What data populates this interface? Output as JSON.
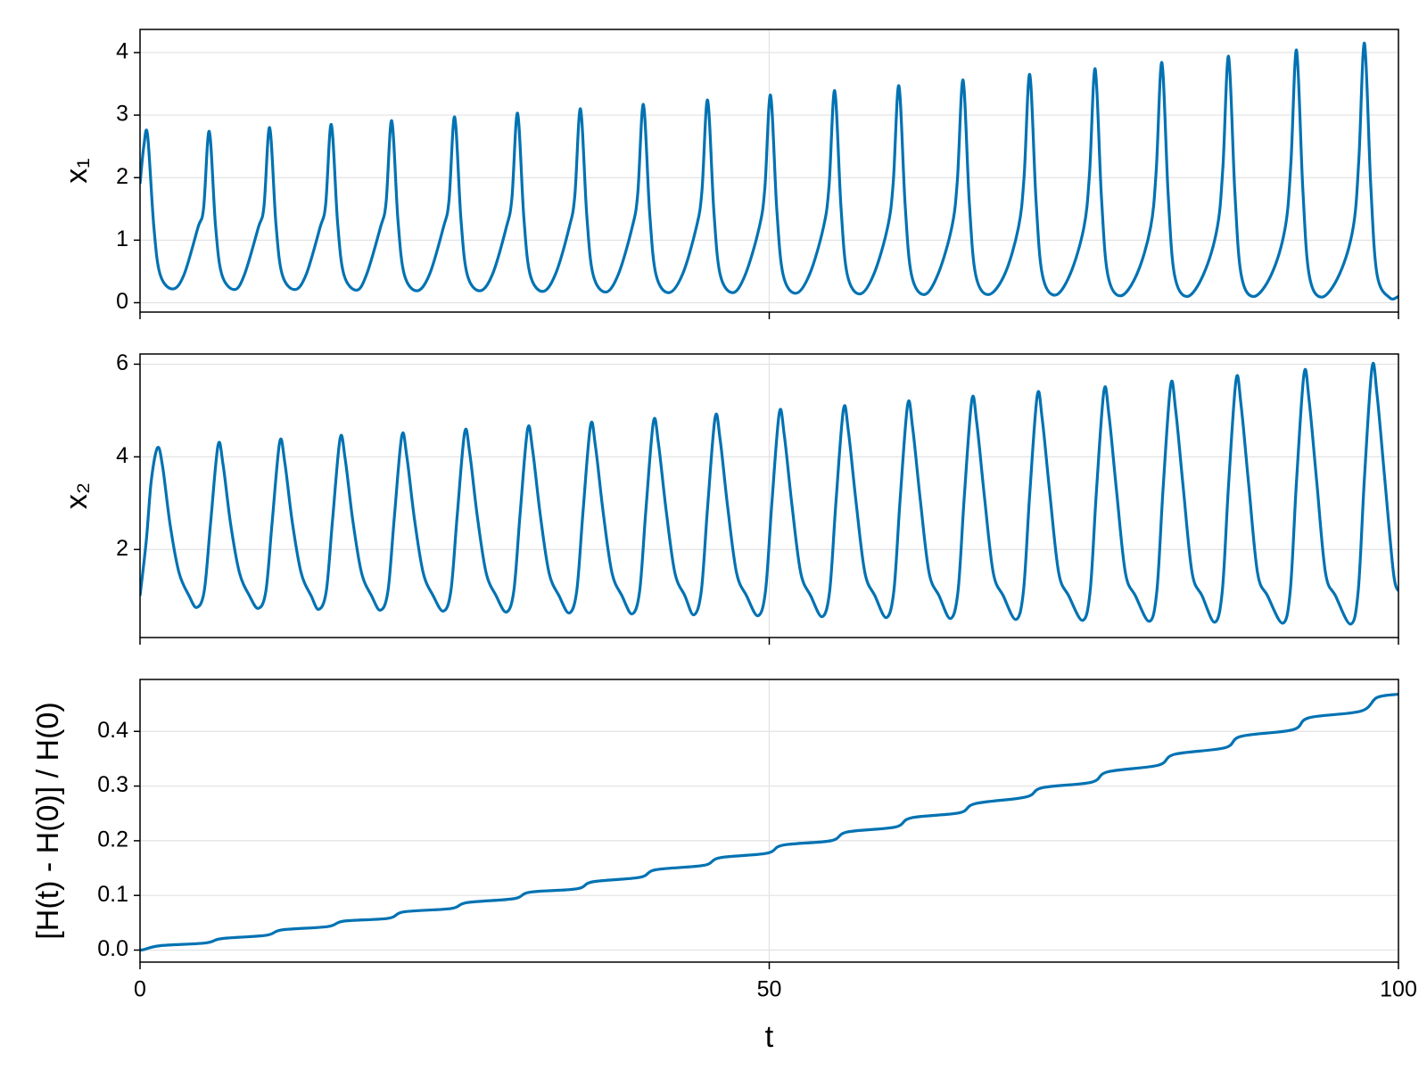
{
  "chart_data": [
    {
      "type": "line",
      "ylabel": "x₁",
      "color": "#0072b2",
      "grid": true,
      "xlim": [
        0,
        100
      ],
      "xticks": [
        0,
        50,
        100
      ],
      "ylim": [
        -0.15,
        4.37
      ],
      "yticks": [
        0,
        1,
        2,
        3,
        4
      ],
      "x": [
        0,
        0.3,
        0.6,
        1.1,
        1.6,
        2.6,
        3.5,
        4.6,
        5.05,
        5.5,
        6.0,
        6.5,
        7.5,
        8.3,
        9.4,
        9.85,
        10.3,
        10.8,
        11.3,
        12.3,
        13.2,
        14.3,
        14.75,
        15.2,
        15.7,
        16.2,
        17.2,
        18.0,
        19.1,
        19.55,
        20.0,
        20.5,
        21.0,
        22.0,
        23.0,
        24.1,
        24.55,
        25.0,
        25.5,
        26,
        27,
        28,
        29.1,
        29.55,
        30,
        30.5,
        31,
        32,
        33,
        34.1,
        34.55,
        35,
        35.5,
        36,
        37,
        38,
        39.1,
        39.55,
        40,
        40.5,
        41,
        42,
        43.1,
        44.2,
        44.65,
        45.1,
        45.6,
        46.1,
        47.1,
        48.1,
        49.2,
        49.65,
        50.1,
        50.6,
        51.1,
        52.1,
        53.2,
        54.3,
        54.75,
        55.2,
        55.7,
        56.2,
        57.2,
        58.3,
        59.4,
        59.85,
        60.3,
        60.8,
        61.3,
        62.3,
        63.4,
        64.5,
        64.95,
        65.4,
        65.9,
        66.4,
        67.4,
        68.7,
        69.8,
        70.25,
        70.7,
        71.2,
        71.7,
        72.7,
        73.9,
        75.0,
        75.45,
        75.9,
        76.4,
        76.9,
        77.9,
        79.2,
        80.3,
        80.75,
        81.2,
        81.7,
        82.2,
        83.2,
        84.5,
        85.6,
        86.05,
        86.5,
        87.0,
        87.5,
        88.5,
        89.9,
        91.0,
        91.45,
        91.9,
        92.4,
        92.9,
        93.9,
        95.3,
        96.4,
        96.85,
        97.3,
        97.8,
        98.3,
        99.3,
        100
      ],
      "values": [
        1.9,
        2.5,
        2.68,
        1.21,
        0.45,
        0.22,
        0.45,
        1.2,
        1.51,
        2.74,
        1.23,
        0.45,
        0.21,
        0.45,
        1.2,
        1.54,
        2.8,
        1.26,
        0.45,
        0.21,
        0.45,
        1.2,
        1.57,
        2.85,
        1.28,
        0.45,
        0.2,
        0.45,
        1.2,
        1.6,
        2.91,
        1.31,
        0.45,
        0.19,
        0.45,
        1.2,
        1.63,
        2.97,
        1.34,
        0.45,
        0.19,
        0.45,
        1.2,
        1.67,
        3.03,
        1.36,
        0.45,
        0.18,
        0.45,
        1.2,
        1.71,
        3.1,
        1.4,
        0.45,
        0.17,
        0.45,
        1.2,
        1.74,
        3.17,
        1.43,
        0.45,
        0.16,
        0.45,
        1.2,
        1.78,
        3.24,
        1.46,
        0.45,
        0.16,
        0.45,
        1.2,
        1.83,
        3.32,
        1.49,
        0.45,
        0.15,
        0.45,
        1.2,
        1.86,
        3.39,
        1.53,
        0.45,
        0.14,
        0.45,
        1.2,
        1.91,
        3.47,
        1.56,
        0.45,
        0.13,
        0.45,
        1.2,
        1.96,
        3.56,
        1.6,
        0.45,
        0.13,
        0.45,
        1.2,
        2.01,
        3.65,
        1.64,
        0.45,
        0.12,
        0.45,
        1.2,
        2.06,
        3.74,
        1.68,
        0.45,
        0.11,
        0.45,
        1.2,
        2.11,
        3.84,
        1.73,
        0.45,
        0.1,
        0.45,
        1.2,
        2.17,
        3.94,
        1.77,
        0.45,
        0.1,
        0.45,
        1.2,
        2.22,
        4.04,
        1.82,
        0.45,
        0.09,
        0.45,
        1.2,
        2.28,
        4.15,
        1.87,
        0.45,
        0.08,
        0.1
      ]
    },
    {
      "type": "line",
      "ylabel": "x₂",
      "color": "#0072b2",
      "grid": true,
      "xlim": [
        0,
        100
      ],
      "xticks": [
        0,
        50,
        100
      ],
      "ylim": [
        0.1,
        6.22
      ],
      "yticks": [
        2,
        4,
        6
      ],
      "x": [
        0,
        0.5,
        0.9,
        1.4,
        1.8,
        2.4,
        3.1,
        3.9,
        4.5,
        5.1,
        5.6,
        6.2,
        6.6,
        7.2,
        7.9,
        8.7,
        9.4,
        10.0,
        10.5,
        11.1,
        11.5,
        12.1,
        12.8,
        13.6,
        14.2,
        14.8,
        15.3,
        15.9,
        16.3,
        16.9,
        17.6,
        18.4,
        19.1,
        19.7,
        20.2,
        20.8,
        21.2,
        21.8,
        22.5,
        23.3,
        24.1,
        24.7,
        25.2,
        25.8,
        26.2,
        26.8,
        27.5,
        28.3,
        29.1,
        29.7,
        30.2,
        30.8,
        31.2,
        31.8,
        32.5,
        33.3,
        34.1,
        34.7,
        35.2,
        35.8,
        36.2,
        36.8,
        37.5,
        38.3,
        39.1,
        39.7,
        40.2,
        40.8,
        41.2,
        41.8,
        42.5,
        43.3,
        44.0,
        44.6,
        45.1,
        45.7,
        46.1,
        46.7,
        47.4,
        48.2,
        49.1,
        49.7,
        50.2,
        50.8,
        51.2,
        51.8,
        52.5,
        53.3,
        54.2,
        54.8,
        55.3,
        55.9,
        56.3,
        56.9,
        57.6,
        58.4,
        59.3,
        59.9,
        60.4,
        61.0,
        61.4,
        62.0,
        62.7,
        63.5,
        64.4,
        65.0,
        65.5,
        66.1,
        66.5,
        67.1,
        67.8,
        68.6,
        69.6,
        70.2,
        70.7,
        71.3,
        71.7,
        72.3,
        73.0,
        73.8,
        74.9,
        75.5,
        76.0,
        76.6,
        77.0,
        77.6,
        78.3,
        79.1,
        80.2,
        80.8,
        81.3,
        81.9,
        82.3,
        82.9,
        83.6,
        84.4,
        85.4,
        86.0,
        86.5,
        87.1,
        87.5,
        88.1,
        88.8,
        89.6,
        90.8,
        91.4,
        91.9,
        92.5,
        92.9,
        93.5,
        94.2,
        95.0,
        96.2,
        96.8,
        97.3,
        97.9,
        98.3,
        98.9,
        99.6,
        100
      ],
      "values": [
        1.0,
        2.2,
        3.5,
        4.2,
        3.78,
        2.52,
        1.5,
        1.0,
        0.75,
        1.1,
        2.55,
        4.25,
        3.83,
        2.55,
        1.5,
        1.0,
        0.73,
        1.1,
        2.59,
        4.32,
        3.89,
        2.59,
        1.5,
        1.0,
        0.71,
        1.1,
        2.64,
        4.4,
        3.96,
        2.64,
        1.5,
        1.0,
        0.69,
        1.1,
        2.67,
        4.45,
        4.01,
        2.67,
        1.5,
        1.0,
        0.67,
        1.1,
        2.72,
        4.53,
        4.08,
        2.72,
        1.5,
        1.0,
        0.65,
        1.1,
        2.76,
        4.6,
        4.14,
        2.76,
        1.5,
        1.0,
        0.63,
        1.1,
        2.81,
        4.68,
        4.21,
        2.81,
        1.5,
        1.0,
        0.61,
        1.1,
        2.86,
        4.76,
        4.28,
        2.86,
        1.5,
        1.0,
        0.59,
        1.1,
        2.91,
        4.85,
        4.37,
        2.91,
        1.5,
        1.0,
        0.57,
        1.1,
        2.97,
        4.95,
        4.46,
        2.97,
        1.5,
        1.0,
        0.55,
        1.1,
        3.02,
        5.03,
        4.53,
        3.02,
        1.5,
        1.0,
        0.53,
        1.1,
        3.08,
        5.13,
        4.62,
        3.08,
        1.5,
        1.0,
        0.51,
        1.1,
        3.14,
        5.23,
        4.71,
        3.14,
        1.5,
        1.0,
        0.49,
        1.1,
        3.2,
        5.33,
        4.8,
        3.2,
        1.5,
        1.0,
        0.47,
        1.1,
        3.26,
        5.43,
        4.89,
        3.26,
        1.5,
        1.0,
        0.45,
        1.1,
        3.33,
        5.55,
        5.0,
        3.33,
        1.5,
        1.0,
        0.43,
        1.1,
        3.4,
        5.67,
        5.1,
        3.4,
        1.5,
        1.0,
        0.41,
        1.1,
        3.48,
        5.8,
        5.22,
        3.48,
        1.5,
        1.0,
        0.39,
        1.1,
        3.56,
        5.93,
        5.34,
        3.56,
        1.5,
        1.1
      ]
    },
    {
      "type": "line",
      "ylabel": "[H(t) - H(0)] / H(0)",
      "xlabel": "t",
      "color": "#0072b2",
      "grid": true,
      "xlim": [
        0,
        100
      ],
      "xticks": [
        0,
        50,
        100
      ],
      "ylim": [
        -0.022,
        0.495
      ],
      "yticks": [
        {
          "value": 0,
          "label": "0.0"
        },
        0.1,
        0.2,
        0.3,
        0.4
      ],
      "x": [
        0,
        0.3,
        1.6,
        5.2,
        6.5,
        10.0,
        11.3,
        14.9,
        16.2,
        19.7,
        21.0,
        24.7,
        26.0,
        29.7,
        31.0,
        34.7,
        36.0,
        39.7,
        41.0,
        44.8,
        46.1,
        49.8,
        51.1,
        54.9,
        56.2,
        60.0,
        61.3,
        65.1,
        66.4,
        70.4,
        71.7,
        75.6,
        76.9,
        80.9,
        82.2,
        86.2,
        87.5,
        91.6,
        92.9,
        97.0,
        98.3,
        100
      ],
      "values": [
        0,
        0.001,
        0.008,
        0.013,
        0.021,
        0.027,
        0.037,
        0.043,
        0.053,
        0.058,
        0.07,
        0.076,
        0.087,
        0.094,
        0.106,
        0.112,
        0.125,
        0.133,
        0.147,
        0.155,
        0.169,
        0.177,
        0.192,
        0.2,
        0.216,
        0.225,
        0.242,
        0.251,
        0.268,
        0.28,
        0.297,
        0.307,
        0.326,
        0.338,
        0.358,
        0.37,
        0.391,
        0.403,
        0.425,
        0.437,
        0.462,
        0.468
      ]
    }
  ]
}
